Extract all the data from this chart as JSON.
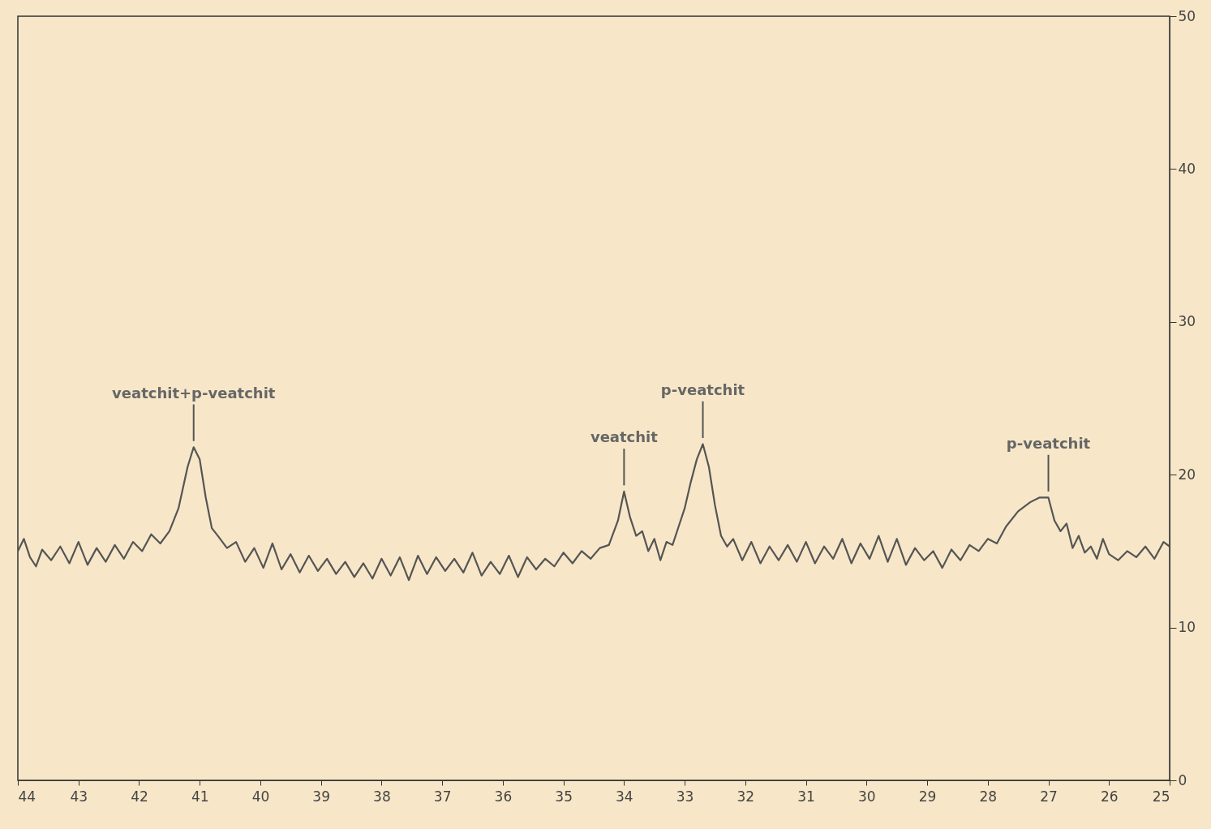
{
  "chart_data": {
    "type": "line",
    "x": [
      44.0,
      43.9,
      43.8,
      43.7,
      43.6,
      43.45,
      43.3,
      43.15,
      43.0,
      42.85,
      42.7,
      42.55,
      42.4,
      42.25,
      42.1,
      41.95,
      41.8,
      41.65,
      41.5,
      41.35,
      41.2,
      41.1,
      41.0,
      40.9,
      40.8,
      40.7,
      40.55,
      40.4,
      40.25,
      40.1,
      39.95,
      39.8,
      39.65,
      39.5,
      39.35,
      39.2,
      39.05,
      38.9,
      38.75,
      38.6,
      38.45,
      38.3,
      38.15,
      38.0,
      37.85,
      37.7,
      37.55,
      37.4,
      37.25,
      37.1,
      36.95,
      36.8,
      36.65,
      36.5,
      36.35,
      36.2,
      36.05,
      35.9,
      35.75,
      35.6,
      35.45,
      35.3,
      35.15,
      35.0,
      34.85,
      34.7,
      34.55,
      34.4,
      34.25,
      34.1,
      34.0,
      33.9,
      33.8,
      33.7,
      33.6,
      33.5,
      33.4,
      33.3,
      33.2,
      33.1,
      33.0,
      32.9,
      32.8,
      32.7,
      32.6,
      32.5,
      32.4,
      32.3,
      32.2,
      32.05,
      31.9,
      31.75,
      31.6,
      31.45,
      31.3,
      31.15,
      31.0,
      30.85,
      30.7,
      30.55,
      30.4,
      30.25,
      30.1,
      29.95,
      29.8,
      29.65,
      29.5,
      29.35,
      29.2,
      29.05,
      28.9,
      28.75,
      28.6,
      28.45,
      28.3,
      28.15,
      28.0,
      27.85,
      27.7,
      27.5,
      27.3,
      27.15,
      27.0,
      26.9,
      26.8,
      26.7,
      26.6,
      26.5,
      26.4,
      26.3,
      26.2,
      26.1,
      26.0,
      25.85,
      25.7,
      25.55,
      25.4,
      25.25,
      25.1,
      25.0
    ],
    "values": [
      15.0,
      15.8,
      14.6,
      14.0,
      15.1,
      14.4,
      15.3,
      14.2,
      15.6,
      14.1,
      15.2,
      14.3,
      15.4,
      14.5,
      15.6,
      15.0,
      16.1,
      15.5,
      16.3,
      17.8,
      20.5,
      21.8,
      21.0,
      18.5,
      16.5,
      16.0,
      15.2,
      15.6,
      14.3,
      15.2,
      13.9,
      15.5,
      13.8,
      14.8,
      13.6,
      14.7,
      13.7,
      14.5,
      13.5,
      14.3,
      13.3,
      14.2,
      13.2,
      14.5,
      13.4,
      14.6,
      13.1,
      14.7,
      13.5,
      14.6,
      13.7,
      14.5,
      13.6,
      14.9,
      13.4,
      14.3,
      13.5,
      14.7,
      13.3,
      14.6,
      13.8,
      14.5,
      14.0,
      14.9,
      14.2,
      15.0,
      14.5,
      15.2,
      15.4,
      17.0,
      18.9,
      17.2,
      16.0,
      16.3,
      15.0,
      15.8,
      14.4,
      15.6,
      15.4,
      16.6,
      17.8,
      19.5,
      21.0,
      22.0,
      20.5,
      18.0,
      16.0,
      15.3,
      15.8,
      14.4,
      15.6,
      14.2,
      15.3,
      14.4,
      15.4,
      14.3,
      15.6,
      14.2,
      15.3,
      14.5,
      15.8,
      14.2,
      15.5,
      14.5,
      16.0,
      14.3,
      15.8,
      14.1,
      15.2,
      14.4,
      15.0,
      13.9,
      15.1,
      14.4,
      15.4,
      15.0,
      15.8,
      15.5,
      16.6,
      17.6,
      18.2,
      18.5,
      18.5,
      17.0,
      16.3,
      16.8,
      15.2,
      16.0,
      14.9,
      15.3,
      14.5,
      15.8,
      14.8,
      14.4,
      15.0,
      14.6,
      15.3,
      14.5,
      15.6,
      15.3
    ],
    "color": "#555555",
    "xlim": [
      44,
      25
    ],
    "xticks": [
      44,
      43,
      42,
      41,
      40,
      39,
      38,
      37,
      36,
      35,
      34,
      33,
      32,
      31,
      30,
      29,
      28,
      27,
      26,
      25
    ],
    "ylim": [
      0,
      50
    ],
    "yticks": [
      0,
      10,
      20,
      30,
      40,
      50
    ],
    "annotations": [
      {
        "text": "veatchit+p-veatchit",
        "x": 41.1,
        "y": 21.8
      },
      {
        "text": "veatchit",
        "x": 34.0,
        "y": 18.9
      },
      {
        "text": "p-veatchit",
        "x": 32.7,
        "y": 22.0
      },
      {
        "text": "p-veatchit",
        "x": 27.0,
        "y": 18.5
      }
    ]
  }
}
